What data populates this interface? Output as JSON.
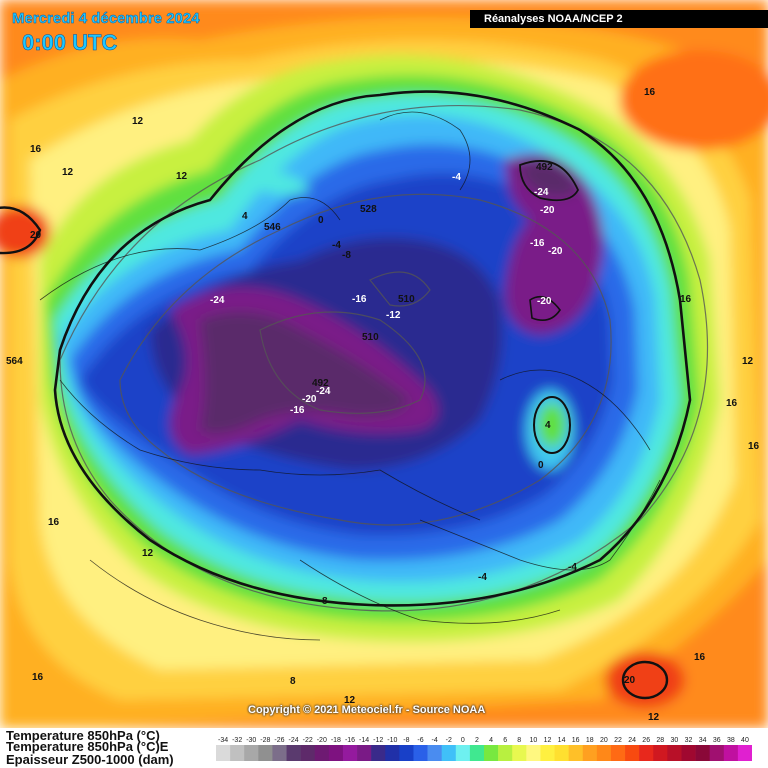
{
  "header": {
    "date": "Mercredi 4 décembre 2024",
    "time": "0:00 UTC",
    "source": "Réanalyses NOAA/NCEP 2"
  },
  "footer": {
    "copyright": "Copyright © 2021 Meteociel.fr - Source NOAA"
  },
  "legend": {
    "line1": "Temperature 850hPa (°C)",
    "line2": "Temperature 850hPa (°C)E",
    "line3": "Epaisseur Z500-1000 (dam)",
    "scale": [
      -34,
      -32,
      -30,
      -28,
      -26,
      -24,
      -22,
      -20,
      -18,
      -16,
      -14,
      -12,
      -10,
      -8,
      -6,
      -4,
      -2,
      0,
      2,
      4,
      6,
      8,
      10,
      12,
      14,
      16,
      18,
      20,
      22,
      24,
      26,
      28,
      30,
      32,
      34,
      36,
      38,
      40
    ],
    "colors": [
      "#dadada",
      "#c0c0c0",
      "#a8a8a8",
      "#909090",
      "#7c6e8a",
      "#5a3a6e",
      "#5e2a6a",
      "#6e1a72",
      "#7e1280",
      "#941a9e",
      "#7a1a86",
      "#3a2a8a",
      "#2030a8",
      "#1840c8",
      "#2a60e8",
      "#4a8cf0",
      "#40c0f8",
      "#6ef0f0",
      "#40e890",
      "#78e840",
      "#b8f040",
      "#e8f850",
      "#fff880",
      "#fff040",
      "#ffe030",
      "#ffc028",
      "#ffa020",
      "#ff8818",
      "#ff6a14",
      "#f84a10",
      "#e8281c",
      "#d01820",
      "#b81028",
      "#a00830",
      "#8a0838",
      "#a01070",
      "#c010a0",
      "#e020d0"
    ]
  },
  "map_labels": [
    {
      "text": "12"
    },
    {
      "text": "16"
    },
    {
      "text": "12"
    },
    {
      "text": "12"
    },
    {
      "text": "20"
    },
    {
      "text": "4"
    },
    {
      "text": "0"
    },
    {
      "text": "-4"
    },
    {
      "text": "-8"
    },
    {
      "text": "528"
    },
    {
      "text": "546"
    },
    {
      "text": "564"
    },
    {
      "text": "-24"
    },
    {
      "text": "-16"
    },
    {
      "text": "-12"
    },
    {
      "text": "510"
    },
    {
      "text": "510"
    },
    {
      "text": "492"
    },
    {
      "text": "-24"
    },
    {
      "text": "-20"
    },
    {
      "text": "-16"
    },
    {
      "text": "-4"
    },
    {
      "text": "492"
    },
    {
      "text": "-24"
    },
    {
      "text": "-20"
    },
    {
      "text": "-16"
    },
    {
      "text": "-20"
    },
    {
      "text": "-20"
    },
    {
      "text": "16"
    },
    {
      "text": "16"
    },
    {
      "text": "16"
    },
    {
      "text": "12"
    },
    {
      "text": "16"
    },
    {
      "text": "4"
    },
    {
      "text": "0"
    },
    {
      "text": "16"
    },
    {
      "text": "12"
    },
    {
      "text": "16"
    },
    {
      "text": "8"
    },
    {
      "text": "8"
    },
    {
      "text": "12"
    },
    {
      "text": "-4"
    },
    {
      "text": "-4"
    },
    {
      "text": "16"
    },
    {
      "text": "20"
    },
    {
      "text": "12"
    }
  ]
}
